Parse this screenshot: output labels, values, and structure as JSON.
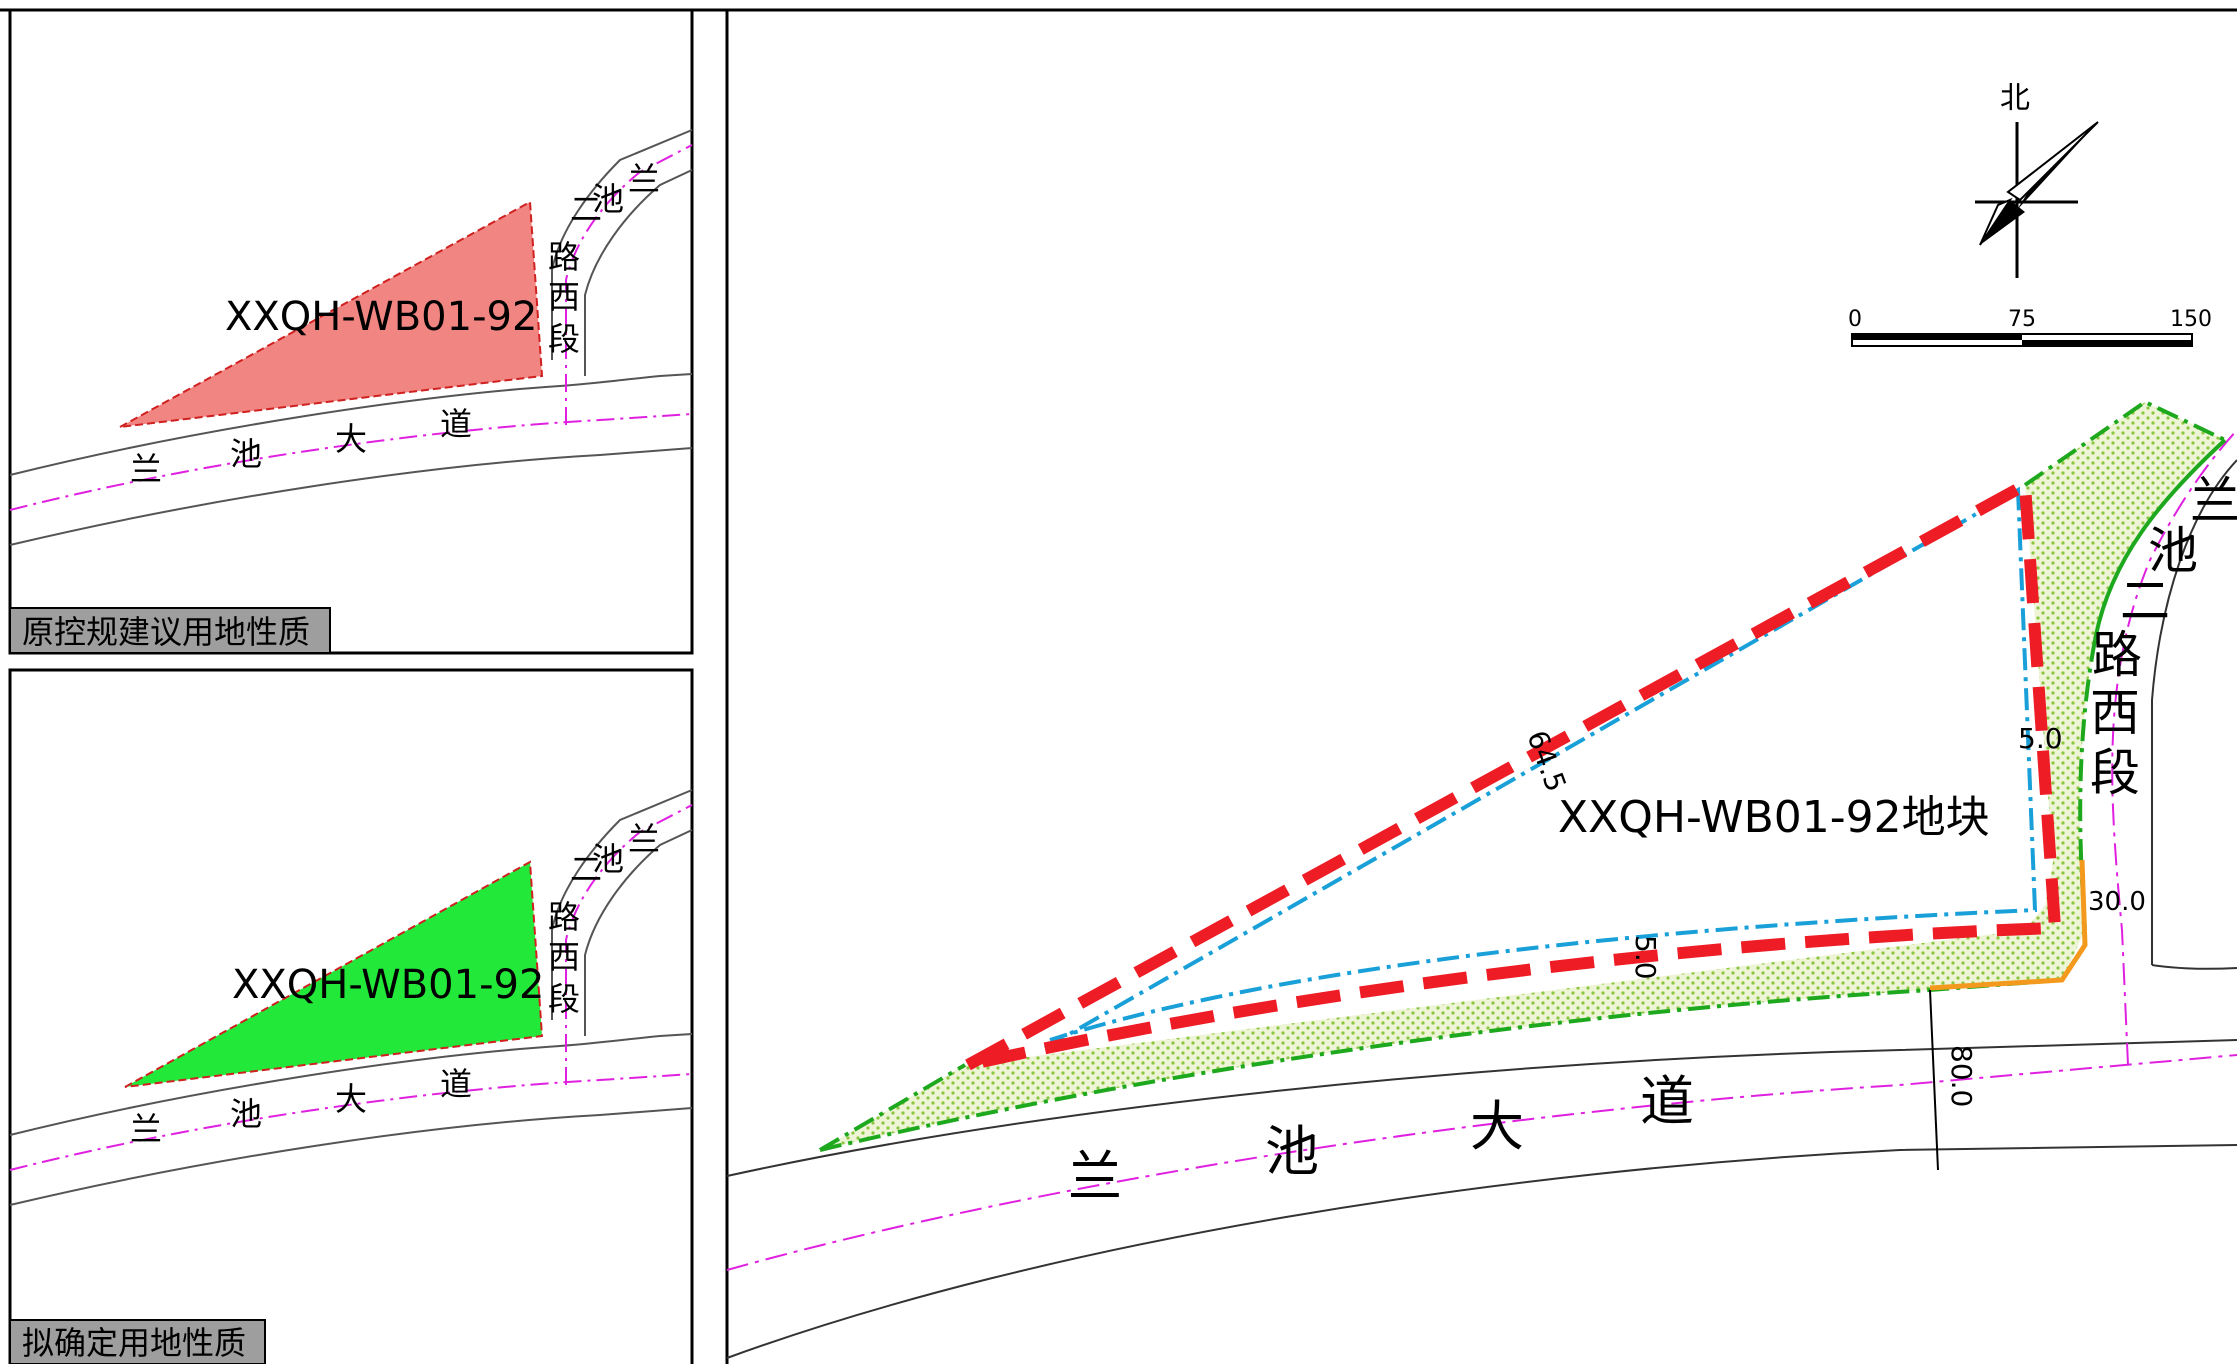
{
  "panels": {
    "top": {
      "caption": "原控规建议用地性质",
      "parcel_code": "XXQH-WB01-92",
      "parcel_color": "#f07874"
    },
    "bottom": {
      "caption": "拟确定用地性质",
      "parcel_code": "XXQH-WB01-92",
      "parcel_color": "#22e83a"
    },
    "road_main_chars": [
      "兰",
      "池",
      "大",
      "道"
    ],
    "road_branch_chars": [
      "兰",
      "池",
      "二",
      "路",
      "西",
      "段"
    ]
  },
  "main_map": {
    "parcel_label": "XXQH-WB01-92地块",
    "north_label": "北",
    "scale_ticks": [
      "0",
      "75",
      "150"
    ],
    "dimensions": [
      "64.5",
      "5.0",
      "5.0",
      "30.0",
      "80.0"
    ],
    "road_main_chars": [
      "兰",
      "池",
      "大",
      "道"
    ],
    "road_branch_chars": [
      "兰",
      "池",
      "二",
      "路",
      "西",
      "段"
    ],
    "colors": {
      "boundary_red": "#ee1c24",
      "line_blue": "#1aa0d8",
      "line_green": "#1ea81e",
      "line_orange": "#f39a1e",
      "centerline_magenta": "#e020e0",
      "greenbelt_fill": "#d9e8a8"
    }
  }
}
